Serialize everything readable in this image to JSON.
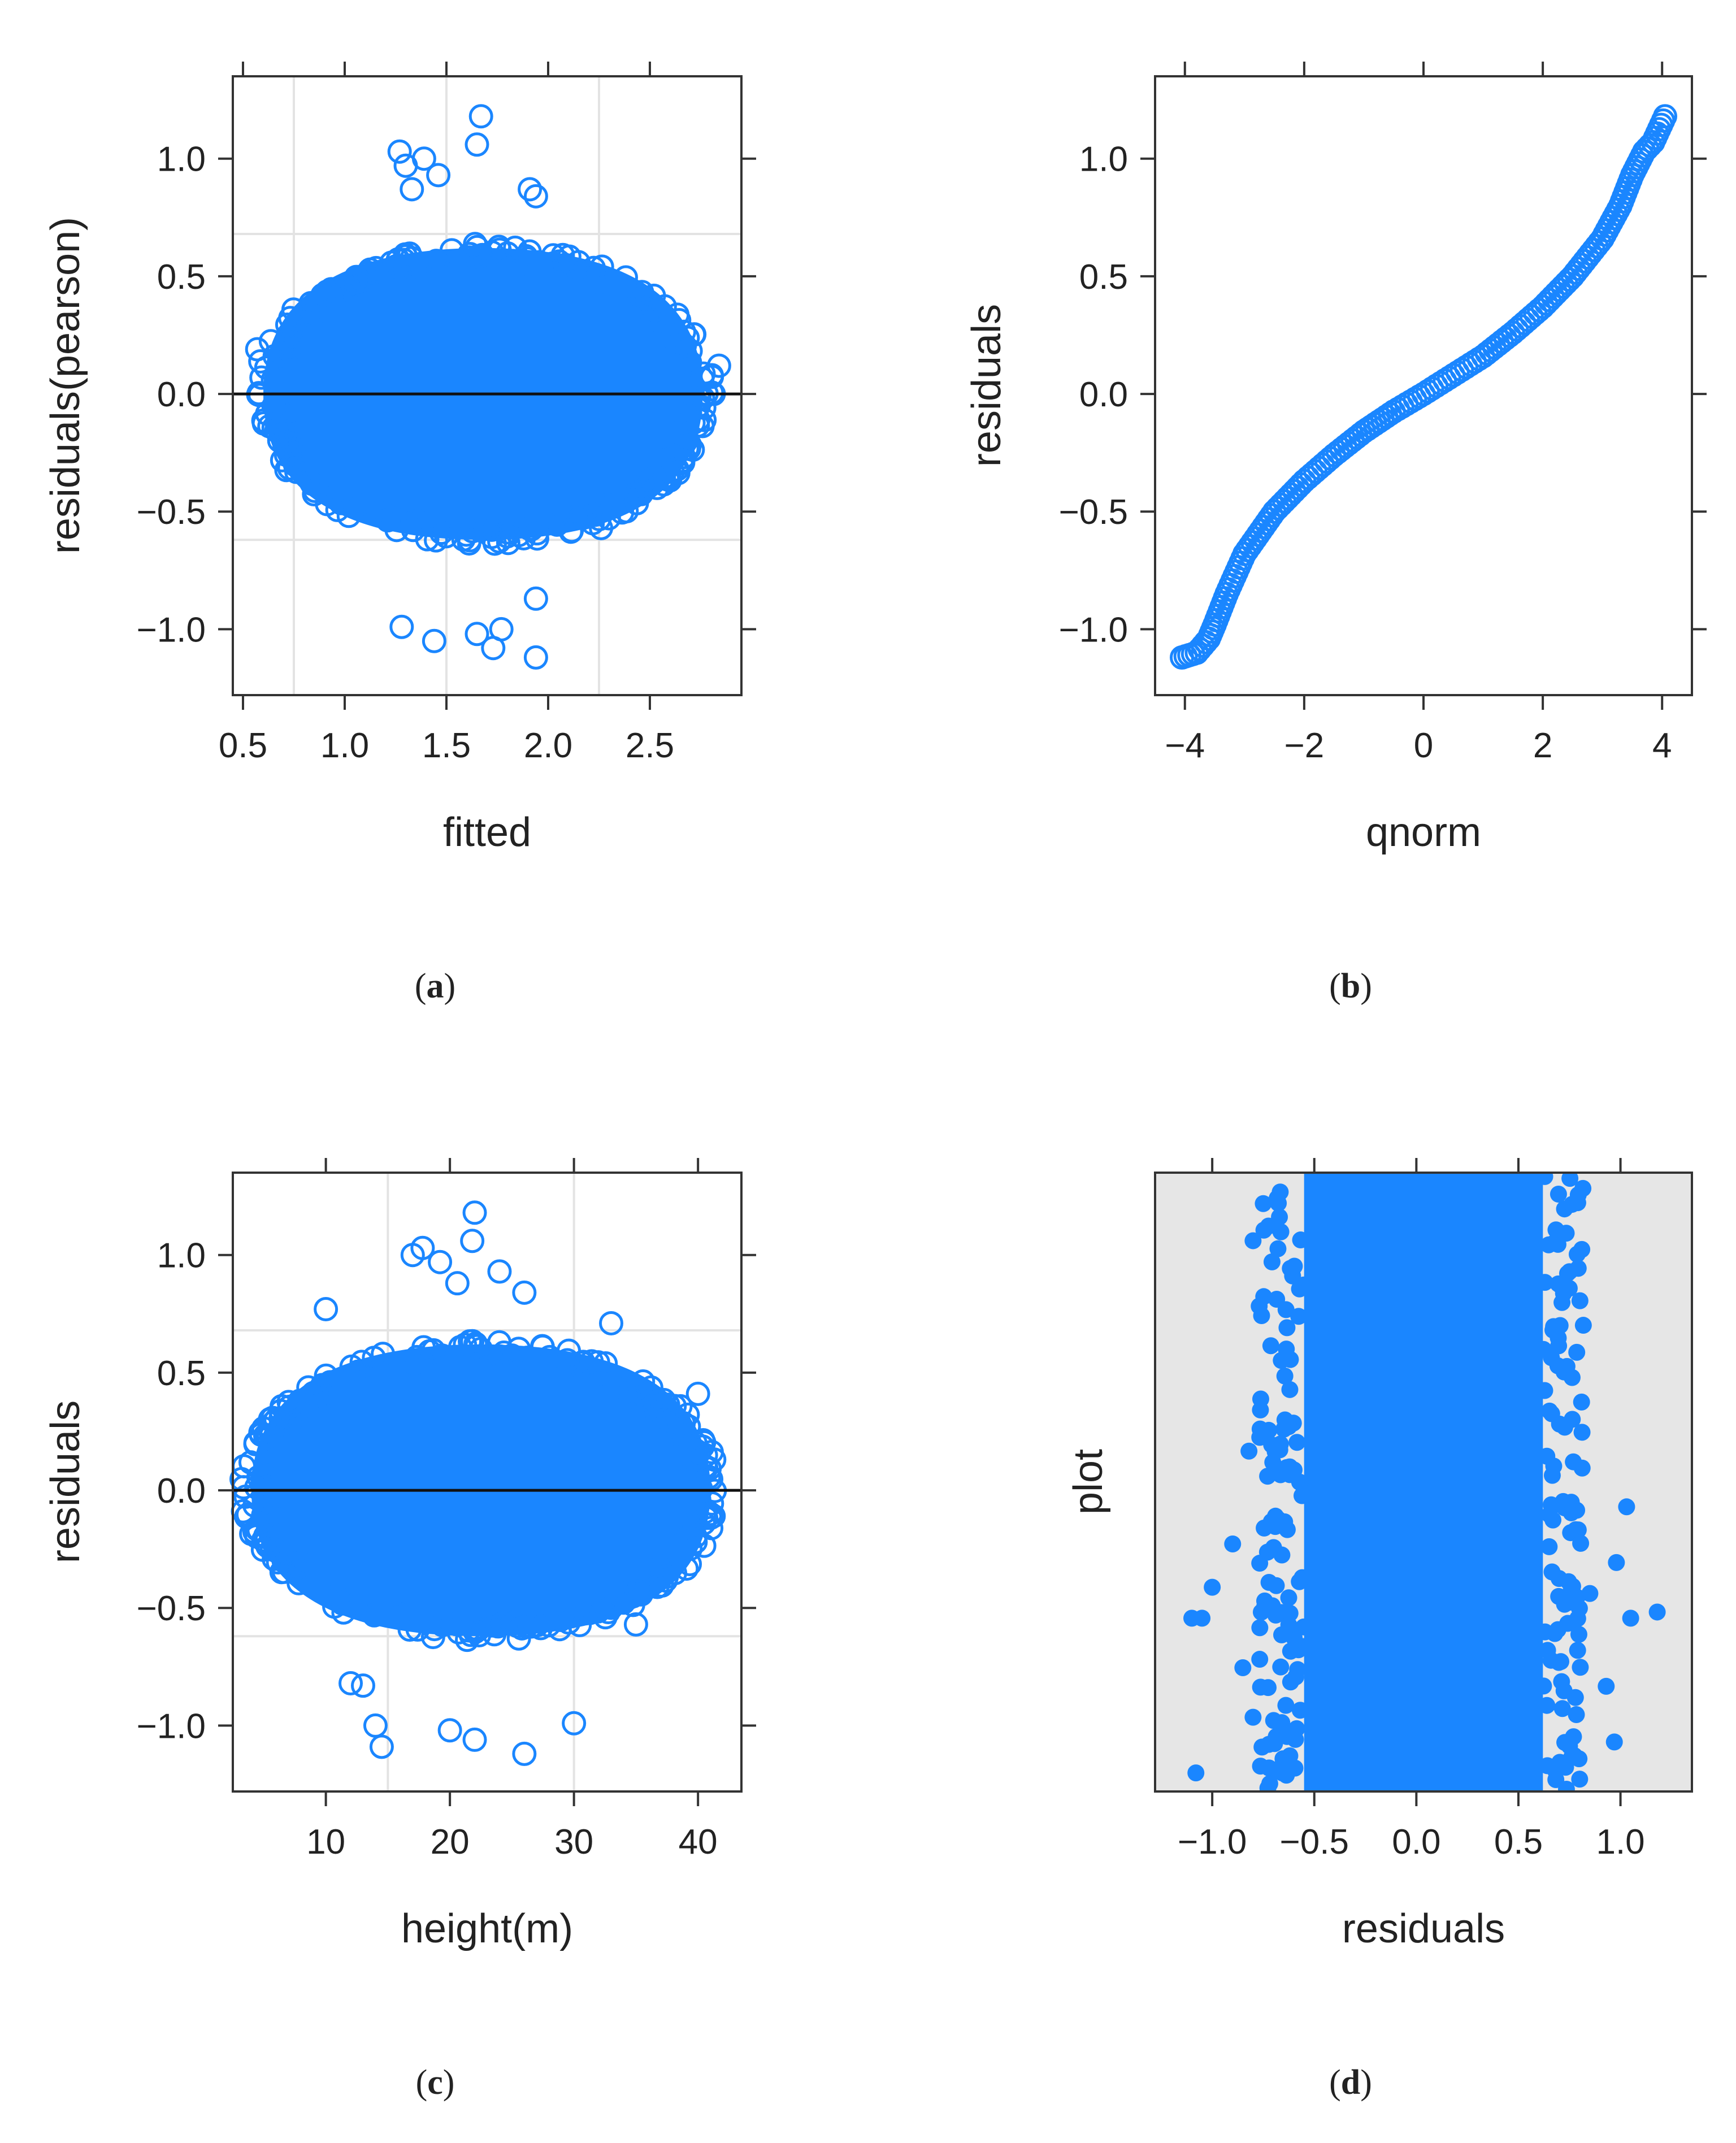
{
  "figure": {
    "colors": {
      "point": "#1a86ff",
      "frame": "#333333",
      "grid": "#e3e3e3",
      "refline": "#111111",
      "panel_bg_d": "#e6e6e6"
    }
  },
  "chart_data": [
    {
      "id": "a",
      "type": "scatter",
      "caption": {
        "open": "(",
        "letter": "a",
        "close": ")"
      },
      "xlabel": "fitted",
      "ylabel": "residuals(pearson)",
      "xlim": [
        0.45,
        2.95
      ],
      "ylim": [
        -1.28,
        1.35
      ],
      "xticks": [
        0.5,
        1.0,
        1.5,
        2.0,
        2.5
      ],
      "xtick_labels": [
        "0.5",
        "1.0",
        "1.5",
        "2.0",
        "2.5"
      ],
      "yticks": [
        -1.0,
        -0.5,
        0.0,
        0.5,
        1.0
      ],
      "ytick_labels": [
        "−1.0",
        "−0.5",
        "0.0",
        "0.5",
        "1.0"
      ],
      "grid": true,
      "reference_line_y": 0,
      "marker": "open-circle",
      "cloud": {
        "x_center": 1.68,
        "x_halfwidth": 1.08,
        "y_halfheight": 0.62
      },
      "outliers": [
        [
          1.67,
          1.18
        ],
        [
          1.65,
          1.06
        ],
        [
          1.27,
          1.03
        ],
        [
          1.39,
          1.0
        ],
        [
          1.3,
          0.97
        ],
        [
          1.46,
          0.93
        ],
        [
          1.33,
          0.87
        ],
        [
          1.91,
          0.87
        ],
        [
          1.94,
          0.84
        ],
        [
          2.26,
          -0.57
        ],
        [
          1.44,
          -1.05
        ],
        [
          1.65,
          -1.02
        ],
        [
          1.73,
          -1.08
        ],
        [
          1.77,
          -1.0
        ],
        [
          1.94,
          -1.12
        ],
        [
          1.94,
          -0.87
        ],
        [
          1.28,
          -0.99
        ],
        [
          0.57,
          0.19
        ],
        [
          2.84,
          0.12
        ]
      ]
    },
    {
      "id": "b",
      "type": "scatter",
      "subtype": "qq-plot",
      "caption": {
        "open": "(",
        "letter": "b",
        "close": ")"
      },
      "xlabel": "qnorm",
      "ylabel": "residuals",
      "xlim": [
        -4.5,
        4.5
      ],
      "ylim": [
        -1.28,
        1.35
      ],
      "xticks": [
        -4,
        -2,
        0,
        2,
        4
      ],
      "xtick_labels": [
        "−4",
        "−2",
        "0",
        "2",
        "4"
      ],
      "yticks": [
        -1.0,
        -0.5,
        0.0,
        0.5,
        1.0
      ],
      "ytick_labels": [
        "−1.0",
        "−0.5",
        "0.0",
        "0.5",
        "1.0"
      ],
      "grid": false,
      "marker": "open-circle",
      "curve": [
        [
          -4.05,
          -1.12
        ],
        [
          -3.8,
          -1.1
        ],
        [
          -3.6,
          -1.04
        ],
        [
          -3.5,
          -0.98
        ],
        [
          -3.3,
          -0.85
        ],
        [
          -3.0,
          -0.68
        ],
        [
          -2.5,
          -0.5
        ],
        [
          -2.0,
          -0.37
        ],
        [
          -1.5,
          -0.26
        ],
        [
          -1.0,
          -0.16
        ],
        [
          -0.5,
          -0.075
        ],
        [
          0.0,
          0.0
        ],
        [
          0.5,
          0.08
        ],
        [
          1.0,
          0.16
        ],
        [
          1.5,
          0.26
        ],
        [
          2.0,
          0.37
        ],
        [
          2.5,
          0.5
        ],
        [
          3.0,
          0.66
        ],
        [
          3.3,
          0.8
        ],
        [
          3.5,
          0.93
        ],
        [
          3.7,
          1.03
        ],
        [
          3.85,
          1.07
        ],
        [
          4.05,
          1.18
        ]
      ]
    },
    {
      "id": "c",
      "type": "scatter",
      "caption": {
        "open": "(",
        "letter": "c",
        "close": ")"
      },
      "xlabel": "height(m)",
      "ylabel": "residuals",
      "xlim": [
        2.5,
        43.5
      ],
      "ylim": [
        -1.28,
        1.35
      ],
      "xticks": [
        10,
        20,
        30,
        40
      ],
      "xtick_labels": [
        "10",
        "20",
        "30",
        "40"
      ],
      "yticks": [
        -1.0,
        -0.5,
        0.0,
        0.5,
        1.0
      ],
      "ytick_labels": [
        "−1.0",
        "−0.5",
        "0.0",
        "0.5",
        "1.0"
      ],
      "grid": true,
      "reference_line_y": 0,
      "marker": "open-circle",
      "cloud": {
        "x_center": 22.5,
        "x_halfwidth": 18.5,
        "y_halfheight": 0.62
      },
      "outliers": [
        [
          22.0,
          1.18
        ],
        [
          21.8,
          1.06
        ],
        [
          17.0,
          1.0
        ],
        [
          17.8,
          1.03
        ],
        [
          19.2,
          0.97
        ],
        [
          20.6,
          0.88
        ],
        [
          24.0,
          0.93
        ],
        [
          26.0,
          0.84
        ],
        [
          10.0,
          0.77
        ],
        [
          33.0,
          0.71
        ],
        [
          40.0,
          0.41
        ],
        [
          14.0,
          -1.0
        ],
        [
          14.5,
          -1.09
        ],
        [
          20.0,
          -1.02
        ],
        [
          22.0,
          -1.06
        ],
        [
          26.0,
          -1.12
        ],
        [
          30.0,
          -0.99
        ],
        [
          12.0,
          -0.82
        ],
        [
          13.0,
          -0.83
        ],
        [
          35.0,
          -0.57
        ],
        [
          41.0,
          -0.1
        ]
      ]
    },
    {
      "id": "d",
      "type": "scatter",
      "subtype": "dotplot",
      "caption": {
        "open": "(",
        "letter": "d",
        "close": ")"
      },
      "xlabel": "residuals",
      "ylabel": "plot",
      "xlim": [
        -1.28,
        1.35
      ],
      "xticks": [
        -1.0,
        -0.5,
        0.0,
        0.5,
        1.0
      ],
      "xtick_labels": [
        "−1.0",
        "−0.5",
        "0.0",
        "0.5",
        "1.0"
      ],
      "yticks": [],
      "grid": false,
      "marker": "filled-circle",
      "band": {
        "x_min": -0.55,
        "x_max": 0.62
      },
      "outliers": [
        [
          -1.1,
          0.28
        ],
        [
          -1.05,
          0.28
        ],
        [
          -1.0,
          0.33
        ],
        [
          -0.9,
          0.4
        ],
        [
          -0.85,
          0.2
        ],
        [
          -1.08,
          0.03
        ],
        [
          -0.82,
          0.55
        ],
        [
          -0.8,
          0.12
        ],
        [
          -0.75,
          0.95
        ],
        [
          -0.8,
          0.89
        ],
        [
          1.03,
          0.46
        ],
        [
          0.98,
          0.37
        ],
        [
          1.05,
          0.28
        ],
        [
          1.18,
          0.29
        ],
        [
          0.93,
          0.17
        ],
        [
          0.97,
          0.08
        ],
        [
          0.85,
          0.32
        ],
        [
          0.8,
          0.02
        ],
        [
          0.75,
          0.84
        ]
      ]
    }
  ]
}
